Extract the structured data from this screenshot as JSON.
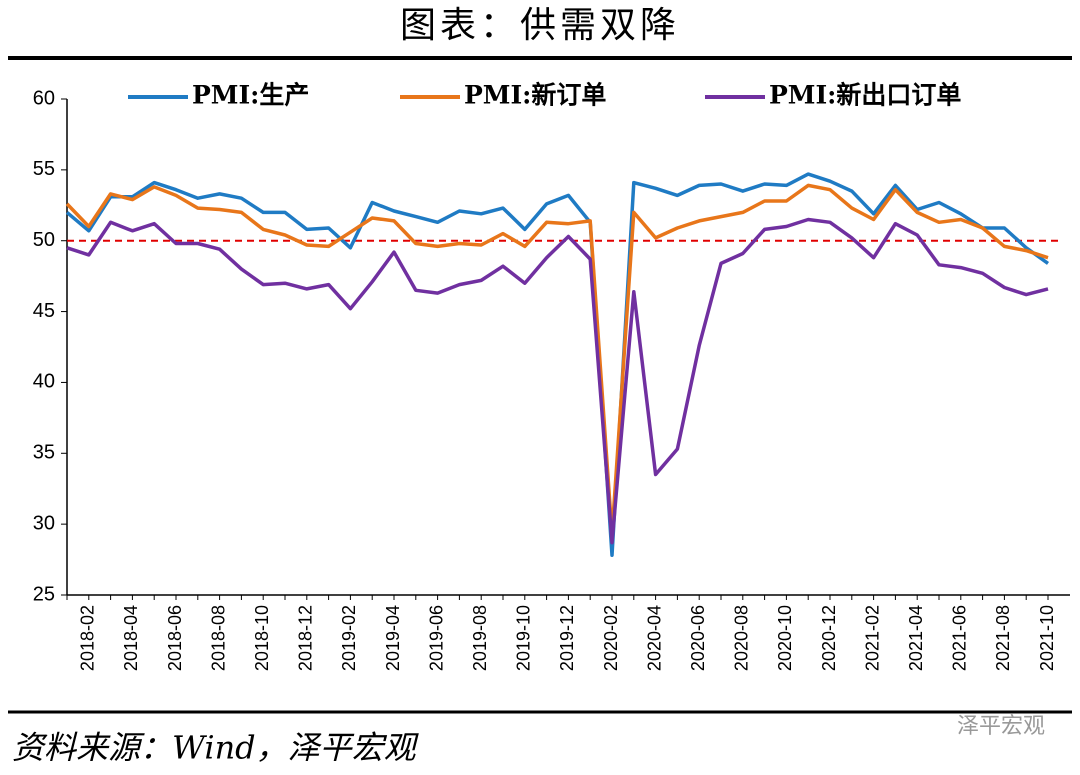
{
  "chart_data": {
    "type": "line",
    "title": "图表：供需双降",
    "source": "资料来源：Wind，泽平宏观",
    "watermark": "泽平宏观",
    "categories": [
      null,
      "2018-02",
      null,
      "2018-04",
      null,
      "2018-06",
      null,
      "2018-08",
      null,
      "2018-10",
      null,
      "2018-12",
      null,
      "2019-02",
      null,
      "2019-04",
      null,
      "2019-06",
      null,
      "2019-08",
      null,
      "2019-10",
      null,
      "2019-12",
      null,
      "2020-02",
      null,
      "2020-04",
      null,
      "2020-06",
      null,
      "2020-08",
      null,
      "2020-10",
      null,
      "2020-12",
      null,
      "2021-02",
      null,
      "2021-04",
      null,
      "2021-06",
      null,
      "2021-08",
      null,
      "2021-10"
    ],
    "series": [
      {
        "name": "PMI:生产",
        "color": "#1f7bc4",
        "values": [
          52.0,
          50.7,
          53.1,
          53.1,
          54.1,
          53.6,
          53.0,
          53.3,
          53.0,
          52.0,
          52.0,
          50.8,
          50.9,
          49.5,
          52.7,
          52.1,
          51.7,
          51.3,
          52.1,
          51.9,
          52.3,
          50.8,
          52.6,
          53.2,
          51.3,
          27.8,
          54.1,
          53.7,
          53.2,
          53.9,
          54.0,
          53.5,
          54.0,
          53.9,
          54.7,
          54.2,
          53.5,
          51.9,
          53.9,
          52.2,
          52.7,
          51.9,
          50.9,
          50.9,
          49.5,
          48.4
        ]
      },
      {
        "name": "PMI:新订单",
        "color": "#e8761a",
        "values": [
          52.6,
          51.0,
          53.3,
          52.9,
          53.8,
          53.2,
          52.3,
          52.2,
          52.0,
          50.8,
          50.4,
          49.7,
          49.6,
          50.6,
          51.6,
          51.4,
          49.8,
          49.6,
          49.8,
          49.7,
          50.5,
          49.6,
          51.3,
          51.2,
          51.4,
          29.3,
          52.0,
          50.2,
          50.9,
          51.4,
          51.7,
          52.0,
          52.8,
          52.8,
          53.9,
          53.6,
          52.3,
          51.5,
          53.6,
          52.0,
          51.3,
          51.5,
          50.9,
          49.6,
          49.3,
          48.8
        ]
      },
      {
        "name": "PMI:新出口订单",
        "color": "#7030a0",
        "values": [
          49.5,
          49.0,
          51.3,
          50.7,
          51.2,
          49.8,
          49.8,
          49.4,
          48.0,
          46.9,
          47.0,
          46.6,
          46.9,
          45.2,
          47.1,
          49.2,
          46.5,
          46.3,
          46.9,
          47.2,
          48.2,
          47.0,
          48.8,
          50.3,
          48.7,
          28.7,
          46.4,
          33.5,
          35.3,
          42.6,
          48.4,
          49.1,
          50.8,
          51.0,
          51.5,
          51.3,
          50.2,
          48.8,
          51.2,
          50.4,
          48.3,
          48.1,
          47.7,
          46.7,
          46.2,
          46.6
        ]
      }
    ],
    "reference_line": 50,
    "reference_color": "#e00000",
    "ylim": [
      25,
      60
    ],
    "yticks": [
      25,
      30,
      35,
      40,
      45,
      50,
      55,
      60
    ],
    "grid": false
  }
}
